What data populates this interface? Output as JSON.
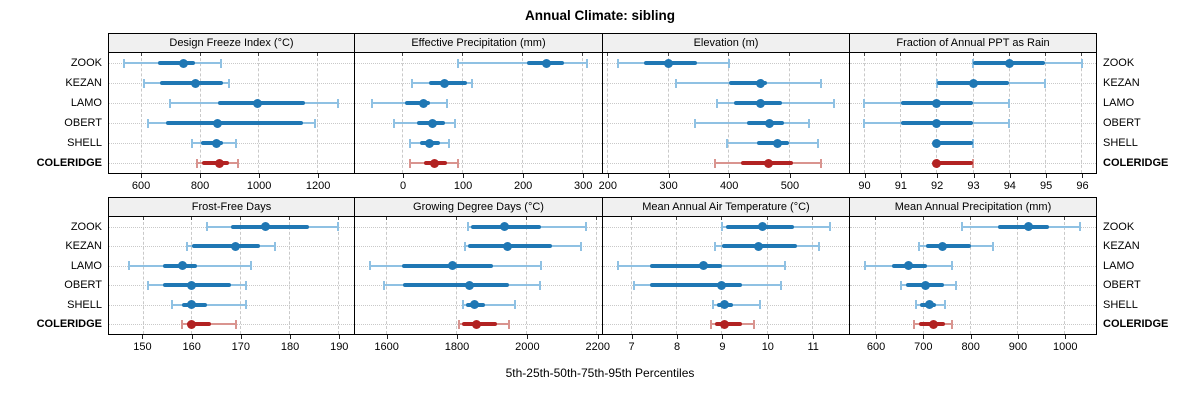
{
  "title": "Annual Climate: sibling",
  "caption": "5th-25th-50th-75th-95th Percentiles",
  "sites": [
    "ZOOK",
    "KEZAN",
    "LAMO",
    "OBERT",
    "SHELL",
    "COLERIDGE"
  ],
  "highlight_site": "COLERIDGE",
  "colors": {
    "series_main": "#1f77b4",
    "series_light": "#8fc1e3",
    "highlight_main": "#b22222",
    "highlight_light": "#d9948f",
    "grid": "#c9c9c9",
    "panel_header_bg": "#f0f0f0",
    "panel_border": "#000000"
  },
  "chart_data": {
    "type": "dot-interval-trellis",
    "value_order": [
      "p5",
      "p25",
      "p50",
      "p75",
      "p95"
    ],
    "grid": "on",
    "rows_of_panels": 2,
    "panels_per_row": 4,
    "panels": [
      {
        "row": 0,
        "title": "Design Freeze Index (°C)",
        "xlim": [
          488,
          1325
        ],
        "ticks": [
          600,
          800,
          1000,
          1200
        ],
        "series": [
          {
            "site": "ZOOK",
            "values": [
              538,
              656,
              744,
              781,
              872
            ]
          },
          {
            "site": "KEZAN",
            "values": [
              609,
              662,
              784,
              876,
              898
            ]
          },
          {
            "site": "LAMO",
            "values": [
              696,
              859,
              997,
              1157,
              1270
            ]
          },
          {
            "site": "OBERT",
            "values": [
              620,
              684,
              860,
              1150,
              1191
            ]
          },
          {
            "site": "SHELL",
            "values": [
              772,
              803,
              856,
              876,
              921
            ]
          },
          {
            "site": "COLERIDGE",
            "values": [
              789,
              806,
              866,
              898,
              927
            ]
          }
        ]
      },
      {
        "row": 0,
        "title": "Effective Precipitation (mm)",
        "xlim": [
          -80,
          333
        ],
        "ticks": [
          0,
          100,
          200,
          300
        ],
        "series": [
          {
            "site": "ZOOK",
            "values": [
              92,
              208,
              240,
              270,
              308
            ]
          },
          {
            "site": "KEZAN",
            "values": [
              15,
              44,
              70,
              108,
              115
            ]
          },
          {
            "site": "LAMO",
            "values": [
              -52,
              3,
              34,
              46,
              73
            ]
          },
          {
            "site": "OBERT",
            "values": [
              -15,
              24,
              50,
              71,
              87
            ]
          },
          {
            "site": "SHELL",
            "values": [
              12,
              28,
              45,
              62,
              78
            ]
          },
          {
            "site": "COLERIDGE",
            "values": [
              12,
              36,
              53,
              74,
              92
            ]
          }
        ]
      },
      {
        "row": 0,
        "title": "Elevation (m)",
        "xlim": [
          192,
          599
        ],
        "ticks": [
          200,
          300,
          400,
          500
        ],
        "series": [
          {
            "site": "ZOOK",
            "values": [
              216,
              260,
              301,
              348,
              400
            ]
          },
          {
            "site": "KEZAN",
            "values": [
              312,
              400,
              452,
              464,
              553
            ]
          },
          {
            "site": "LAMO",
            "values": [
              380,
              408,
              452,
              488,
              574
            ]
          },
          {
            "site": "OBERT",
            "values": [
              344,
              430,
              468,
              492,
              533
            ]
          },
          {
            "site": "SHELL",
            "values": [
              397,
              447,
              481,
              500,
              547
            ]
          },
          {
            "site": "COLERIDGE",
            "values": [
              377,
              420,
              466,
              506,
              553
            ]
          }
        ]
      },
      {
        "row": 0,
        "title": "Fraction of Annual PPT as Rain",
        "xlim": [
          89.6,
          96.4
        ],
        "ticks": [
          90,
          91,
          92,
          93,
          94,
          95,
          96
        ],
        "series": [
          {
            "site": "ZOOK",
            "values": [
              93,
              93,
              94,
              95,
              96
            ]
          },
          {
            "site": "KEZAN",
            "values": [
              92,
              92,
              93,
              94,
              95
            ]
          },
          {
            "site": "LAMO",
            "values": [
              90,
              91,
              92,
              93,
              94
            ]
          },
          {
            "site": "OBERT",
            "values": [
              90,
              91,
              92,
              93,
              94
            ]
          },
          {
            "site": "SHELL",
            "values": [
              92,
              92,
              92,
              93,
              93
            ]
          },
          {
            "site": "COLERIDGE",
            "values": [
              92,
              92,
              92,
              93,
              93
            ]
          }
        ]
      },
      {
        "row": 1,
        "title": "Frost-Free Days",
        "xlim": [
          143,
          193.2
        ],
        "ticks": [
          150,
          160,
          170,
          180,
          190
        ],
        "series": [
          {
            "site": "ZOOK",
            "values": [
              163,
              168,
              175,
              184,
              190
            ]
          },
          {
            "site": "KEZAN",
            "values": [
              159,
              160,
              169,
              174,
              177
            ]
          },
          {
            "site": "LAMO",
            "values": [
              147,
              154,
              158,
              161,
              172
            ]
          },
          {
            "site": "OBERT",
            "values": [
              151,
              154,
              160,
              168,
              171
            ]
          },
          {
            "site": "SHELL",
            "values": [
              156,
              158,
              160,
              163,
              171
            ]
          },
          {
            "site": "COLERIDGE",
            "values": [
              158,
              159,
              160,
              164,
              169
            ]
          }
        ]
      },
      {
        "row": 1,
        "title": "Growing Degree Days (°C)",
        "xlim": [
          1510,
          2215
        ],
        "ticks": [
          1600,
          1800,
          2000,
          2200
        ],
        "series": [
          {
            "site": "ZOOK",
            "values": [
              1833,
              1840,
              1937,
              2040,
              2168
            ]
          },
          {
            "site": "KEZAN",
            "values": [
              1824,
              1833,
              1944,
              2073,
              2154
            ]
          },
          {
            "site": "LAMO",
            "values": [
              1552,
              1645,
              1789,
              1904,
              2040
            ]
          },
          {
            "site": "OBERT",
            "values": [
              1594,
              1646,
              1838,
              1950,
              2038
            ]
          },
          {
            "site": "SHELL",
            "values": [
              1819,
              1826,
              1851,
              1880,
              1968
            ]
          },
          {
            "site": "COLERIDGE",
            "values": [
              1808,
              1816,
              1856,
              1914,
              1949
            ]
          }
        ]
      },
      {
        "row": 1,
        "title": "Mean Annual Air Temperature (°C)",
        "xlim": [
          6.37,
          11.81
        ],
        "ticks": [
          7,
          8,
          9,
          10,
          11
        ],
        "series": [
          {
            "site": "ZOOK",
            "values": [
              9.0,
              9.1,
              9.9,
              10.6,
              11.4
            ]
          },
          {
            "site": "KEZAN",
            "values": [
              8.85,
              9.0,
              9.8,
              10.65,
              11.15
            ]
          },
          {
            "site": "LAMO",
            "values": [
              6.7,
              7.4,
              8.6,
              9.0,
              10.4
            ]
          },
          {
            "site": "OBERT",
            "values": [
              7.05,
              7.4,
              9.0,
              9.45,
              10.3
            ]
          },
          {
            "site": "SHELL",
            "values": [
              8.8,
              8.9,
              9.05,
              9.25,
              9.85
            ]
          },
          {
            "site": "COLERIDGE",
            "values": [
              8.75,
              8.85,
              9.05,
              9.45,
              9.7
            ]
          }
        ]
      },
      {
        "row": 1,
        "title": "Mean Annual Precipitation (mm)",
        "xlim": [
          545,
          1067
        ],
        "ticks": [
          600,
          700,
          800,
          900,
          1000
        ],
        "series": [
          {
            "site": "ZOOK",
            "values": [
              783,
              858,
              923,
              968,
              1034
            ]
          },
          {
            "site": "KEZAN",
            "values": [
              691,
              706,
              741,
              801,
              849
            ]
          },
          {
            "site": "LAMO",
            "values": [
              576,
              634,
              670,
              709,
              761
            ]
          },
          {
            "site": "OBERT",
            "values": [
              653,
              664,
              706,
              744,
              769
            ]
          },
          {
            "site": "SHELL",
            "values": [
              684,
              694,
              713,
              727,
              747
            ]
          },
          {
            "site": "COLERIDGE",
            "values": [
              681,
              692,
              723,
              747,
              762
            ]
          }
        ]
      }
    ]
  }
}
